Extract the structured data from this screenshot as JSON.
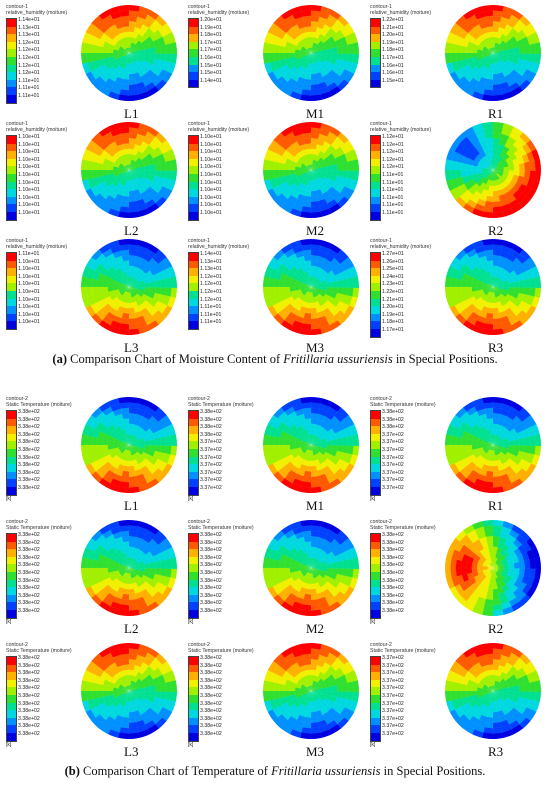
{
  "panel_a": {
    "caption_prefix": "(a)",
    "caption_text": " Comparison Chart of Moisture Content of ",
    "caption_species": "Fritillaria ussuriensis",
    "caption_suffix": " in Special Positions.",
    "tiles": [
      {
        "label": "L1",
        "legend_title": "contour-1\nrelative_humidity (moiture)",
        "unit": "",
        "ticks": [
          "1.14e+01",
          "1.13e+01",
          "1.13e+01",
          "1.12e+01",
          "1.12e+01",
          "1.12e+01",
          "1.12e+01",
          "1.12e+01",
          "1.11e+01",
          "1.11e+01",
          "1.11e+01"
        ],
        "pattern": "top-hot"
      },
      {
        "label": "M1",
        "legend_title": "contour-1\nrelative_humidity (moiture)",
        "unit": "",
        "ticks": [
          "1.20e+01",
          "1.19e+01",
          "1.18e+01",
          "1.17e+01",
          "1.17e+01",
          "1.16e+01",
          "1.15e+01",
          "1.15e+01",
          "1.14e+01"
        ],
        "pattern": "top-hot"
      },
      {
        "label": "R1",
        "legend_title": "contour-1\nrelative_humidity (moiture)",
        "unit": "",
        "ticks": [
          "1.22e+01",
          "1.21e+01",
          "1.20e+01",
          "1.19e+01",
          "1.18e+01",
          "1.17e+01",
          "1.16e+01",
          "1.16e+01",
          "1.15e+01"
        ],
        "pattern": "top-hot"
      },
      {
        "label": "L2",
        "legend_title": "contour-1\nrelative_humidity (moiture)",
        "unit": "",
        "ticks": [
          "1.10e+01",
          "1.10e+01",
          "1.10e+01",
          "1.10e+01",
          "1.10e+01",
          "1.10e+01",
          "1.10e+01",
          "1.10e+01",
          "1.10e+01",
          "1.10e+01",
          "1.10e+01"
        ],
        "pattern": "top-hot"
      },
      {
        "label": "M2",
        "legend_title": "contour-1\nrelative_humidity (moiture)",
        "unit": "",
        "ticks": [
          "1.10e+01",
          "1.10e+01",
          "1.10e+01",
          "1.10e+01",
          "1.10e+01",
          "1.10e+01",
          "1.10e+01",
          "1.10e+01",
          "1.10e+01",
          "1.10e+01",
          "1.10e+01"
        ],
        "pattern": "top-hot"
      },
      {
        "label": "R2",
        "legend_title": "contour-1\nrelative_humidity (moiture)",
        "unit": "",
        "ticks": [
          "1.12e+01",
          "1.12e+01",
          "1.12e+01",
          "1.12e+01",
          "1.12e+01",
          "1.11e+01",
          "1.11e+01",
          "1.11e+01",
          "1.11e+01",
          "1.11e+01",
          "1.11e+01"
        ],
        "pattern": "left-cold"
      },
      {
        "label": "L3",
        "legend_title": "contour-1\nrelative_humidity (moiture)",
        "unit": "",
        "ticks": [
          "1.11e+01",
          "1.10e+01",
          "1.10e+01",
          "1.10e+01",
          "1.10e+01",
          "1.10e+01",
          "1.10e+01",
          "1.10e+01",
          "1.10e+01",
          "1.10e+01"
        ],
        "pattern": "bottom-hot"
      },
      {
        "label": "M3",
        "legend_title": "contour-1\nrelative_humidity (moiture)",
        "unit": "",
        "ticks": [
          "1.14e+01",
          "1.13e+01",
          "1.13e+01",
          "1.12e+01",
          "1.12e+01",
          "1.12e+01",
          "1.12e+01",
          "1.11e+01",
          "1.11e+01",
          "1.11e+01"
        ],
        "pattern": "bottom-hot"
      },
      {
        "label": "R3",
        "legend_title": "contour-1\nrelative_humidity (moiture)",
        "unit": "",
        "ticks": [
          "1.27e+01",
          "1.26e+01",
          "1.25e+01",
          "1.24e+01",
          "1.23e+01",
          "1.22e+01",
          "1.21e+01",
          "1.20e+01",
          "1.19e+01",
          "1.18e+01",
          "1.17e+01"
        ],
        "pattern": "bottom-hot"
      }
    ]
  },
  "panel_b": {
    "caption_prefix": "(b)",
    "caption_text": " Comparison Chart of Temperature of ",
    "caption_species": "Fritillaria ussuriensis",
    "caption_suffix": " in Special Positions.",
    "tiles": [
      {
        "label": "L1",
        "legend_title": "contour-2\nStatic Temperature (moiture)",
        "unit": "[k]",
        "ticks": [
          "3.38e+02",
          "3.38e+02",
          "3.38e+02",
          "3.38e+02",
          "3.38e+02",
          "3.38e+02",
          "3.38e+02",
          "3.38e+02",
          "3.38e+02",
          "3.38e+02",
          "3.38e+02"
        ],
        "pattern": "bottom-hot"
      },
      {
        "label": "M1",
        "legend_title": "contour-2\nStatic Temperature (moiture)",
        "unit": "[k]",
        "ticks": [
          "3.38e+02",
          "3.38e+02",
          "3.38e+02",
          "3.38e+02",
          "3.37e+02",
          "3.37e+02",
          "3.37e+02",
          "3.37e+02",
          "3.37e+02",
          "3.37e+02",
          "3.37e+02"
        ],
        "pattern": "bottom-hot"
      },
      {
        "label": "R1",
        "legend_title": "contour-2\nStatic Temperature (moiture)",
        "unit": "[k]",
        "ticks": [
          "3.38e+02",
          "3.38e+02",
          "3.38e+02",
          "3.37e+02",
          "3.37e+02",
          "3.37e+02",
          "3.37e+02",
          "3.37e+02",
          "3.37e+02",
          "3.37e+02",
          "3.37e+02"
        ],
        "pattern": "bottom-hot"
      },
      {
        "label": "L2",
        "legend_title": "contour-2\nStatic Temperature (moiture)",
        "unit": "[k]",
        "ticks": [
          "3.38e+02",
          "3.38e+02",
          "3.38e+02",
          "3.38e+02",
          "3.38e+02",
          "3.38e+02",
          "3.38e+02",
          "3.38e+02",
          "3.38e+02",
          "3.38e+02",
          "3.38e+02"
        ],
        "pattern": "bottom-hot"
      },
      {
        "label": "M2",
        "legend_title": "contour-2\nStatic Temperature (moiture)",
        "unit": "[k]",
        "ticks": [
          "3.38e+02",
          "3.38e+02",
          "3.38e+02",
          "3.38e+02",
          "3.38e+02",
          "3.38e+02",
          "3.38e+02",
          "3.38e+02",
          "3.38e+02",
          "3.38e+02",
          "3.38e+02"
        ],
        "pattern": "bottom-hot"
      },
      {
        "label": "R2",
        "legend_title": "contour-2\nStatic Temperature (moiture)",
        "unit": "[k]",
        "ticks": [
          "3.38e+02",
          "3.38e+02",
          "3.38e+02",
          "3.38e+02",
          "3.38e+02",
          "3.38e+02",
          "3.38e+02",
          "3.38e+02",
          "3.38e+02",
          "3.38e+02",
          "3.38e+02"
        ],
        "pattern": "left-hot"
      },
      {
        "label": "L3",
        "legend_title": "contour-2\nStatic Temperature (moiture)",
        "unit": "[k]",
        "ticks": [
          "3.38e+02",
          "3.38e+02",
          "3.38e+02",
          "3.38e+02",
          "3.38e+02",
          "3.38e+02",
          "3.38e+02",
          "3.38e+02",
          "3.38e+02",
          "3.38e+02",
          "3.38e+02"
        ],
        "pattern": "top-hot"
      },
      {
        "label": "M3",
        "legend_title": "contour-2\nStatic Temperature (moiture)",
        "unit": "[k]",
        "ticks": [
          "3.38e+02",
          "3.38e+02",
          "3.38e+02",
          "3.38e+02",
          "3.38e+02",
          "3.38e+02",
          "3.38e+02",
          "3.38e+02",
          "3.38e+02",
          "3.38e+02",
          "3.38e+02"
        ],
        "pattern": "top-hot"
      },
      {
        "label": "R3",
        "legend_title": "contour-2\nStatic Temperature (moiture)",
        "unit": "[k]",
        "ticks": [
          "3.37e+02",
          "3.37e+02",
          "3.37e+02",
          "3.37e+02",
          "3.37e+02",
          "3.37e+02",
          "3.37e+02",
          "3.37e+02",
          "3.37e+02",
          "3.37e+02",
          "3.37e+02"
        ],
        "pattern": "top-hot"
      }
    ]
  },
  "colormap": [
    "#ff0000",
    "#ff5a00",
    "#ffb000",
    "#f0f000",
    "#a0f000",
    "#30e030",
    "#00e090",
    "#00d8e0",
    "#0090ff",
    "#0040ff",
    "#0000e0"
  ]
}
